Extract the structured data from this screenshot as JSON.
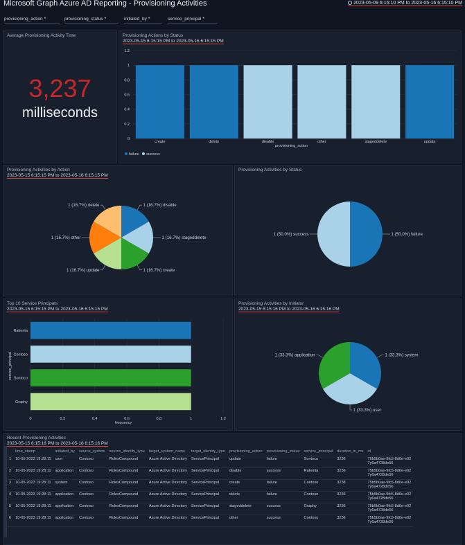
{
  "header": {
    "title": "Microsoft Graph Azure AD Reporting - Provisioning Activities",
    "time_range": "2023-05-09 6:15:10 PM to 2023-05-16 6:15:10 PM"
  },
  "filters": [
    {
      "label": "provisioning_action",
      "value": "*"
    },
    {
      "label": "provisioning_status",
      "value": "*"
    },
    {
      "label": "initiated_by",
      "value": "*"
    },
    {
      "label": "service_principal",
      "value": "*"
    }
  ],
  "panels": {
    "avg_time": {
      "title": "Average Provisioning Activity Time",
      "value": "3,237",
      "unit": "milliseconds"
    },
    "actions_by_status": {
      "title": "Provisioning Actions by Status",
      "range": "2023-05-15 6:15:15 PM to 2023-05-16 6:15:15 PM"
    },
    "by_action": {
      "title": "Provisioning Activities by Action",
      "range": "2023-05-15 6:15:15 PM to 2023-05-16 6:15:15 PM"
    },
    "by_status": {
      "title": "Provisioning Activities by Status"
    },
    "top_sp": {
      "title": "Top 10 Service Principals",
      "range": "2023-05-15 6:15:15 PM to 2023-05-16 6:15:15 PM"
    },
    "by_initiator": {
      "title": "Provisioning Activities by Initiator",
      "range": "2023-05-15 6:15:16 PM to 2023-05-16 6:15:16 PM"
    },
    "recent": {
      "title": "Recent Provisioning Activities",
      "range": "2023-05-15 6:15:16 PM to 2023-05-16 6:15:16 PM"
    }
  },
  "colors": {
    "failure": "#1a75b7",
    "success": "#a9d1e8",
    "red_value": "#c62828"
  },
  "chart_data": [
    {
      "id": "actions_by_status",
      "type": "bar",
      "categories": [
        "create",
        "delete",
        "disable",
        "other",
        "stageddelete",
        "update"
      ],
      "series": [
        {
          "name": "failure",
          "values": [
            1,
            1,
            0,
            0,
            0,
            1
          ]
        },
        {
          "name": "success",
          "values": [
            0,
            0,
            1,
            1,
            1,
            0
          ]
        }
      ],
      "xlabel": "provisioning_action",
      "ylabel": "",
      "ylim": [
        0,
        1.2
      ],
      "yticks": [
        "0",
        "0.2",
        "0.4",
        "0.6",
        "0.8",
        "1",
        "1.2"
      ],
      "legend": "bottom-left",
      "grid": true
    },
    {
      "id": "by_action",
      "type": "pie",
      "slices": [
        {
          "label": "1 (16.7%) disable",
          "value": 1,
          "color": "#1a75b7"
        },
        {
          "label": "1 (16.7%) stageddelete",
          "value": 1,
          "color": "#a9d1e8"
        },
        {
          "label": "1 (16.7%) create",
          "value": 1,
          "color": "#2ca02c"
        },
        {
          "label": "1 (16.7%) update",
          "value": 1,
          "color": "#b5e08f"
        },
        {
          "label": "1 (16.7%) other",
          "value": 1,
          "color": "#ff7f0e"
        },
        {
          "label": "1 (16.7%) delete",
          "value": 1,
          "color": "#ffbf6e"
        }
      ]
    },
    {
      "id": "by_status",
      "type": "pie",
      "slices": [
        {
          "label": "1 (50.0%) failure",
          "value": 1,
          "color": "#1a75b7"
        },
        {
          "label": "1 (50.0%) success",
          "value": 1,
          "color": "#a9d1e8"
        }
      ]
    },
    {
      "id": "top_sp",
      "type": "bar",
      "orientation": "horizontal",
      "categories": [
        "Rakenta",
        "Contoso",
        "Sontoco",
        "Graphy"
      ],
      "values": [
        1,
        1,
        1,
        1
      ],
      "colors": [
        "#1a75b7",
        "#a9d1e8",
        "#2ca02c",
        "#b5e08f"
      ],
      "xlabel": "frequency",
      "ylabel": "service_principal",
      "xlim": [
        0,
        1.2
      ],
      "xticks": [
        "0",
        "0.2",
        "0.4",
        "0.6",
        "0.8",
        "1",
        "1.2"
      ]
    },
    {
      "id": "by_initiator",
      "type": "pie",
      "slices": [
        {
          "label": "1 (33.3%) system",
          "value": 1,
          "color": "#1a75b7"
        },
        {
          "label": "1 (33.3%) user",
          "value": 1,
          "color": "#a9d1e8"
        },
        {
          "label": "1 (33.3%) application",
          "value": 1,
          "color": "#2ca02c"
        }
      ]
    }
  ],
  "table": {
    "columns": [
      "time_stamp",
      "initiated_by",
      "source_system",
      "source_identity_type",
      "target_system_name",
      "target_identity_type",
      "provisioning_action",
      "provisioning_status",
      "service_principal",
      "duration_in_ms",
      "id"
    ],
    "rows": [
      [
        "1",
        "10-05-2023 19:28:11",
        "user",
        "Contoso",
        "RolesCompound",
        "Azure Active Directory",
        "ServicePrincipal",
        "update",
        "failure",
        "Sontoco",
        "3236",
        "75b5b0ae-9fc5-8d0e-e02",
        "7y6a4728de56"
      ],
      [
        "2",
        "10-05-2023 19:28:11",
        "application",
        "Contoso",
        "RolesCompound",
        "Azure Active Directory",
        "ServicePrincipal",
        "disable",
        "success",
        "Rakenta",
        "3236",
        "75b5b0ae-9fc5-8d0e-e02",
        "7y6a4728de56"
      ],
      [
        "3",
        "10-05-2023 19:28:11",
        "system",
        "Contoso",
        "RolesCompound",
        "Azure Active Directory",
        "ServicePrincipal",
        "create",
        "failure",
        "Contoso",
        "3238",
        "75b5b0ae-9fc5-8d0e-e02",
        "7y6a4728de56"
      ],
      [
        "4",
        "10-05-2023 19:28:11",
        "application",
        "Contoso",
        "RolesCompound",
        "Azure Active Directory",
        "ServicePrincipal",
        "delete",
        "failure",
        "Contoso",
        "3236",
        "75b5b0ae-9fc5-8d0e-e02",
        "7y6a4728de56"
      ],
      [
        "5",
        "10-05-2023 19:28:11",
        "application",
        "Contoso",
        "RolesCompound",
        "Azure Active Directory",
        "ServicePrincipal",
        "stageddelete",
        "success",
        "Graphy",
        "3236",
        "75b5b0ae-9fc5-8d0e-e02",
        "7y6a4728de56"
      ],
      [
        "6",
        "10-05-2023 19:28:11",
        "application",
        "Contoso",
        "RolesCompound",
        "Azure Active Directory",
        "ServicePrincipal",
        "other",
        "success",
        "Contoso",
        "3236",
        "75b5b0ae-9fc5-8d0e-e02",
        "7y6a4728de56"
      ]
    ]
  }
}
